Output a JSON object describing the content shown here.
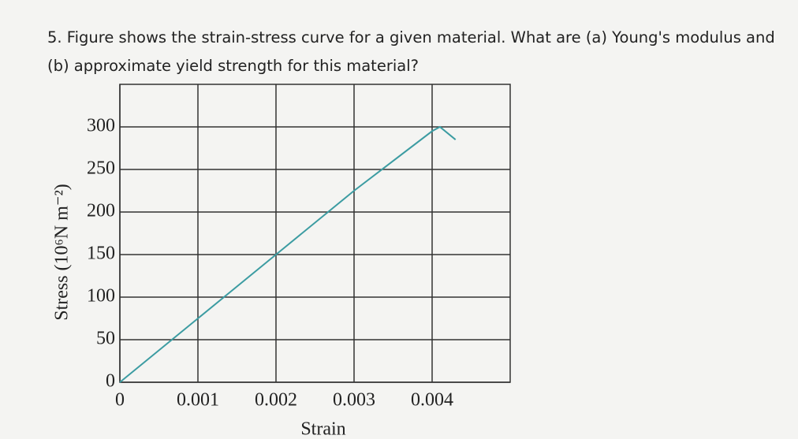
{
  "question": {
    "text": "5. Figure shows the strain-stress curve for a given material. What are (a) Young's modulus and (b) approximate yield strength for this material?"
  },
  "chart_data": {
    "type": "line",
    "x_label": "Strain",
    "y_label": "Stress (10⁶N m⁻²)",
    "x": [
      0,
      0.001,
      0.002,
      0.003,
      0.004,
      0.0041,
      0.0043
    ],
    "series": [
      {
        "color": "#3c9ca2",
        "values": [
          0,
          75,
          150,
          225,
          295,
          300,
          285
        ]
      }
    ],
    "xlim": [
      0,
      0.005
    ],
    "ylim": [
      0,
      350
    ],
    "xticks": [
      0,
      0.001,
      0.002,
      0.003,
      0.004
    ],
    "yticks": [
      0,
      50,
      100,
      150,
      200,
      250,
      300
    ],
    "grid": true
  }
}
